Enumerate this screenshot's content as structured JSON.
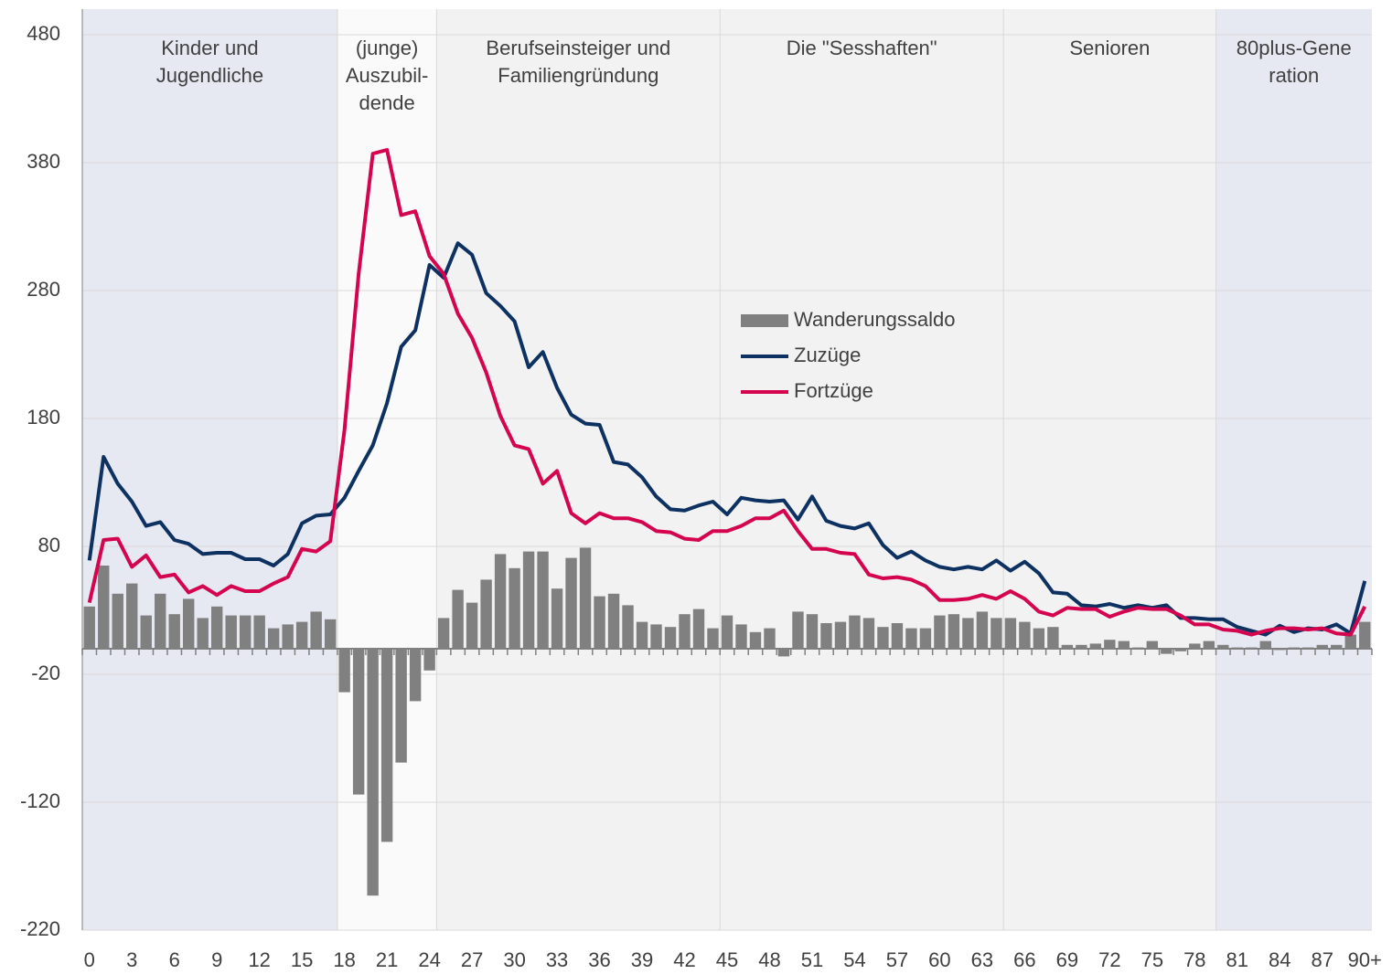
{
  "chart_data": {
    "type": "bar-line",
    "categories": [
      "0",
      null,
      null,
      "3",
      null,
      null,
      "6",
      null,
      null,
      "9",
      null,
      null,
      "12",
      null,
      null,
      "15",
      null,
      null,
      "18",
      null,
      null,
      "21",
      null,
      null,
      "24",
      null,
      null,
      "27",
      null,
      null,
      "30",
      null,
      null,
      "33",
      null,
      null,
      "36",
      null,
      null,
      "39",
      null,
      null,
      "42",
      null,
      null,
      "45",
      null,
      null,
      "48",
      null,
      null,
      "51",
      null,
      null,
      "54",
      null,
      null,
      "57",
      null,
      null,
      "60",
      null,
      null,
      "63",
      null,
      null,
      "66",
      null,
      null,
      "69",
      null,
      null,
      "72",
      null,
      null,
      "75",
      null,
      null,
      "78",
      null,
      null,
      "81",
      null,
      null,
      "84",
      null,
      null,
      "87",
      null,
      null,
      "90+"
    ],
    "series": [
      {
        "name": "Wanderungssaldo",
        "kind": "bar",
        "color": "#808080",
        "values": [
          33,
          65,
          43,
          51,
          26,
          43,
          27,
          39,
          24,
          33,
          26,
          26,
          26,
          16,
          19,
          21,
          29,
          23,
          -34,
          -114,
          -193,
          -151,
          -89,
          -41,
          -17,
          24,
          46,
          36,
          54,
          74,
          63,
          76,
          76,
          47,
          71,
          79,
          41,
          43,
          34,
          21,
          19,
          17,
          27,
          31,
          16,
          26,
          19,
          13,
          16,
          -6,
          29,
          27,
          20,
          21,
          26,
          24,
          17,
          20,
          16,
          16,
          26,
          27,
          24,
          29,
          24,
          24,
          21,
          16,
          17,
          3,
          3,
          4,
          7,
          6,
          1,
          6,
          -4,
          -2,
          4,
          6,
          3,
          1,
          1,
          6,
          -1,
          1,
          1,
          3,
          3,
          11,
          21
        ]
      },
      {
        "name": "Zuzüge",
        "kind": "line",
        "color": "#0d3161",
        "values": [
          69,
          150,
          129,
          115,
          96,
          99,
          85,
          82,
          74,
          75,
          75,
          70,
          70,
          65,
          74,
          98,
          104,
          105,
          118,
          139,
          159,
          192,
          236,
          249,
          300,
          290,
          317,
          308,
          278,
          268,
          256,
          220,
          232,
          204,
          183,
          176,
          175,
          146,
          144,
          134,
          119,
          109,
          108,
          112,
          115,
          105,
          118,
          116,
          115,
          116,
          101,
          119,
          100,
          96,
          94,
          98,
          81,
          71,
          76,
          69,
          64,
          62,
          64,
          62,
          69,
          61,
          68,
          59,
          44,
          43,
          34,
          33,
          35,
          32,
          34,
          32,
          34,
          24,
          24,
          23,
          23,
          17,
          14,
          11,
          18,
          13,
          16,
          15,
          19,
          12,
          53
        ]
      },
      {
        "name": "Fortzüge",
        "kind": "line",
        "color": "#d4044f",
        "values": [
          36,
          85,
          86,
          64,
          73,
          56,
          58,
          44,
          49,
          42,
          49,
          45,
          45,
          51,
          56,
          78,
          76,
          84,
          171,
          293,
          387,
          390,
          339,
          342,
          307,
          293,
          262,
          243,
          216,
          182,
          159,
          156,
          129,
          139,
          106,
          98,
          106,
          102,
          102,
          99,
          92,
          91,
          86,
          85,
          92,
          92,
          96,
          102,
          102,
          108,
          92,
          78,
          78,
          75,
          74,
          58,
          55,
          56,
          54,
          49,
          38,
          38,
          39,
          42,
          39,
          45,
          39,
          29,
          26,
          32,
          31,
          31,
          25,
          29,
          32,
          31,
          31,
          26,
          19,
          19,
          15,
          14,
          11,
          14,
          16,
          16,
          15,
          16,
          12,
          11,
          33
        ]
      }
    ],
    "bands": [
      {
        "label": [
          "Kinder und",
          "Jugendliche"
        ],
        "from": 0,
        "to": 17,
        "color": "#e6e8f2"
      },
      {
        "label": [
          "(junge)",
          "Auszubil-",
          "dende"
        ],
        "from": 18,
        "to": 24,
        "color": "#fafafa"
      },
      {
        "label": [
          "Berufseinsteiger  und",
          "Familiengründung"
        ],
        "from": 25,
        "to": 44,
        "color": "#f2f2f2"
      },
      {
        "label": [
          "Die \"Sesshaften\""
        ],
        "from": 45,
        "to": 64,
        "color": "#f2f2f2"
      },
      {
        "label": [
          "Senioren"
        ],
        "from": 65,
        "to": 79,
        "color": "#f2f2f2"
      },
      {
        "label": [
          "80plus-Gene",
          "ration"
        ],
        "from": 80,
        "to": 90,
        "color": "#e6e8f2"
      }
    ],
    "ylim": [
      -220,
      500
    ],
    "yticks": [
      480,
      380,
      280,
      180,
      80,
      -20,
      -120,
      -220
    ],
    "grid": true,
    "legend": "center"
  }
}
